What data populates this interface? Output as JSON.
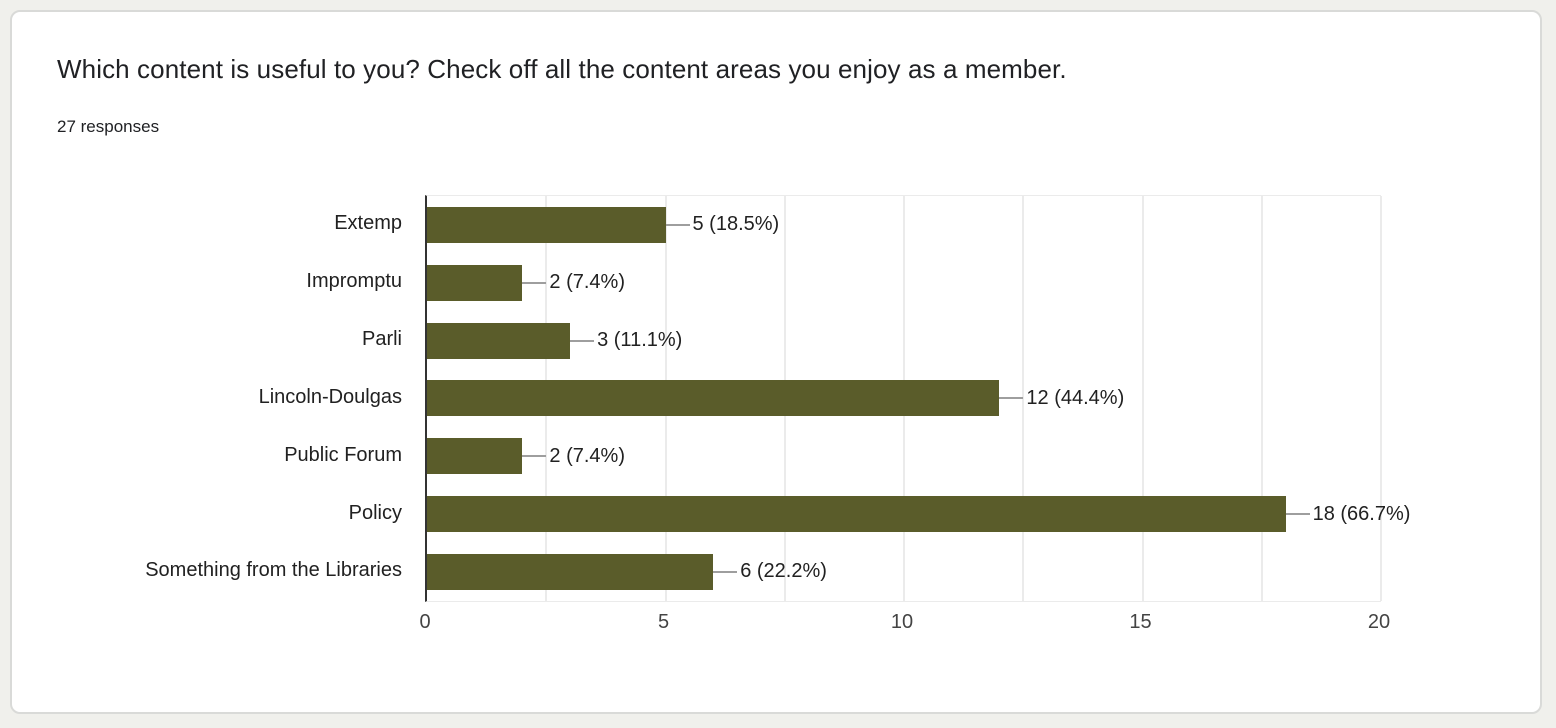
{
  "header": {
    "title": "Which content is useful to you? Check off all the content areas you enjoy as a member.",
    "responses": "27 responses"
  },
  "chart_data": {
    "type": "bar",
    "orientation": "horizontal",
    "title": "Which content is useful to you? Check off all the content areas you enjoy as a member.",
    "subtitle": "27 responses",
    "categories": [
      "Extemp",
      "Impromptu",
      "Parli",
      "Lincoln-Doulgas",
      "Public Forum",
      "Policy",
      "Something from the Libraries"
    ],
    "values": [
      5,
      2,
      3,
      12,
      2,
      18,
      6
    ],
    "data_labels": [
      "5 (18.5%)",
      "2 (7.4%)",
      "3 (11.1%)",
      "12 (44.4%)",
      "2 (7.4%)",
      "18 (66.7%)",
      "6 (22.2%)"
    ],
    "xlim": [
      0,
      20
    ],
    "x_ticks": [
      "0",
      "5",
      "10",
      "15",
      "20"
    ],
    "x_tick_values": [
      0,
      5,
      10,
      15,
      20
    ],
    "minor_grid_step": 2.5,
    "grid": true,
    "legend": "none",
    "xlabel": "",
    "ylabel": ""
  },
  "colors": {
    "bar": "#5a5c2a",
    "page_bg": "#f0f0ec",
    "card_bg": "#ffffff",
    "card_border": "#d9dad8",
    "gridline": "#ebebeb",
    "axis_line": "#333333",
    "leader_line": "#9e9e9e",
    "text": "#202124",
    "label_text": "#212121",
    "tick_text": "#444444"
  }
}
